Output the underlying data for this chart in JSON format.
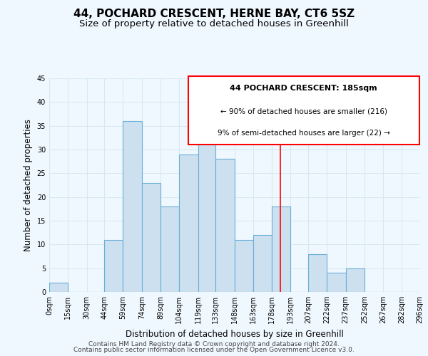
{
  "title": "44, POCHARD CRESCENT, HERNE BAY, CT6 5SZ",
  "subtitle": "Size of property relative to detached houses in Greenhill",
  "xlabel": "Distribution of detached houses by size in Greenhill",
  "ylabel": "Number of detached properties",
  "footer_line1": "Contains HM Land Registry data © Crown copyright and database right 2024.",
  "footer_line2": "Contains public sector information licensed under the Open Government Licence v3.0.",
  "bin_edges": [
    0,
    15,
    30,
    44,
    59,
    74,
    89,
    104,
    119,
    133,
    148,
    163,
    178,
    193,
    207,
    222,
    237,
    252,
    267,
    282,
    296
  ],
  "bar_heights": [
    2,
    0,
    0,
    11,
    36,
    23,
    18,
    29,
    35,
    28,
    11,
    12,
    18,
    0,
    8,
    4,
    5,
    0,
    0,
    0
  ],
  "bar_color": "#cce0f0",
  "bar_edgecolor": "#6aaed6",
  "tick_labels": [
    "0sqm",
    "15sqm",
    "30sqm",
    "44sqm",
    "59sqm",
    "74sqm",
    "89sqm",
    "104sqm",
    "119sqm",
    "133sqm",
    "148sqm",
    "163sqm",
    "178sqm",
    "193sqm",
    "207sqm",
    "222sqm",
    "237sqm",
    "252sqm",
    "267sqm",
    "282sqm",
    "296sqm"
  ],
  "ylim": [
    0,
    45
  ],
  "yticks": [
    0,
    5,
    10,
    15,
    20,
    25,
    30,
    35,
    40,
    45
  ],
  "red_line_x": 185,
  "annotation_title": "44 POCHARD CRESCENT: 185sqm",
  "annotation_line1": "← 90% of detached houses are smaller (216)",
  "annotation_line2": "9% of semi-detached houses are larger (22) →",
  "background_color": "#f0f8ff",
  "grid_color": "#d8e8f0",
  "title_fontsize": 11,
  "subtitle_fontsize": 9.5,
  "axis_label_fontsize": 8.5,
  "tick_fontsize": 7,
  "footer_fontsize": 6.5,
  "annotation_fontsize_title": 8,
  "annotation_fontsize_lines": 7.5
}
